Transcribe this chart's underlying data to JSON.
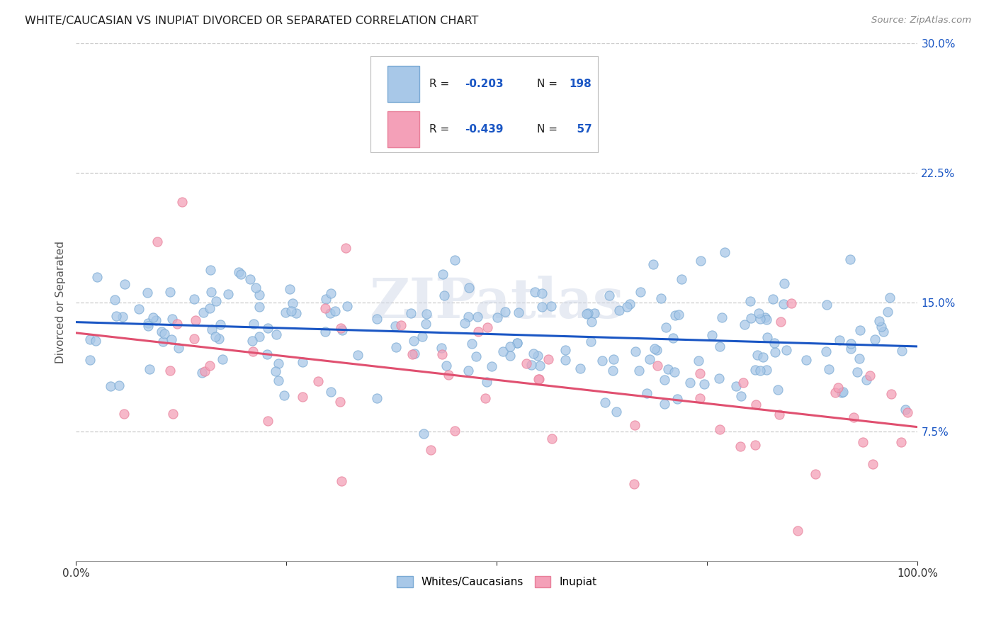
{
  "title": "WHITE/CAUCASIAN VS INUPIAT DIVORCED OR SEPARATED CORRELATION CHART",
  "source": "Source: ZipAtlas.com",
  "ylabel": "Divorced or Separated",
  "watermark": "ZIPatlas",
  "x_min": 0.0,
  "x_max": 1.0,
  "y_min": 0.0,
  "y_max": 0.3,
  "yticks": [
    0.075,
    0.15,
    0.225,
    0.3
  ],
  "ytick_labels": [
    "7.5%",
    "15.0%",
    "22.5%",
    "30.0%"
  ],
  "blue_R": -0.203,
  "blue_N": 198,
  "pink_R": -0.439,
  "pink_N": 57,
  "blue_color": "#A8C8E8",
  "pink_color": "#F4A0B8",
  "blue_edge_color": "#7BAAD4",
  "pink_edge_color": "#E8809A",
  "blue_line_color": "#1A56C4",
  "pink_line_color": "#E05070",
  "legend_blue_label": "Whites/Caucasians",
  "legend_pink_label": "Inupiat",
  "blue_intercept": 0.146,
  "blue_slope": -0.008,
  "pink_intercept": 0.148,
  "pink_slope": -0.068,
  "seed": 99
}
